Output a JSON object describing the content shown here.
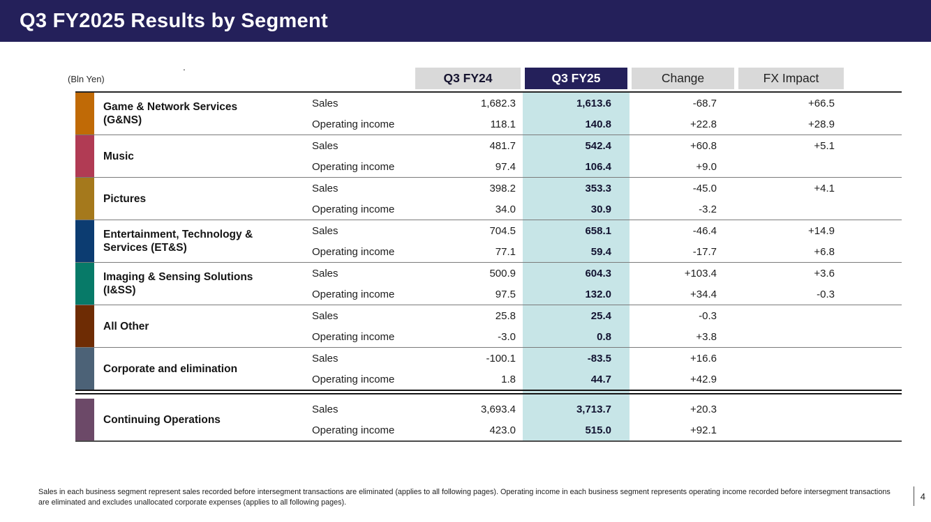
{
  "slide": {
    "title": "Q3 FY2025 Results by Segment",
    "unit_label": "(Bln Yen)",
    "stray_mark": ".",
    "page_number": "4",
    "footnote": "Sales in each business segment represent sales recorded before intersegment transactions are eliminated (applies to all following pages). Operating income in each business segment represents operating income recorded before intersegment transactions are eliminated and excludes unallocated corporate expenses (applies to all following pages)."
  },
  "colors": {
    "title_bar_bg": "#24205a",
    "header_highlight_bg": "#24205a",
    "header_gray_bg": "#d9d9d9",
    "column_highlight": "#c7e5e7"
  },
  "table": {
    "columns": [
      "Q3 FY24",
      "Q3 FY25",
      "Change",
      "FX Impact"
    ],
    "row_labels": {
      "sales": "Sales",
      "operating_income": "Operating income"
    },
    "segments": [
      {
        "name": "Game & Network Services (G&NS)",
        "color": "#c06a06",
        "sales": {
          "q3fy24": "1,682.3",
          "q3fy25": "1,613.6",
          "change": "-68.7",
          "fx_impact": "+66.5"
        },
        "operating_income": {
          "q3fy24": "118.1",
          "q3fy25": "140.8",
          "change": "+22.8",
          "fx_impact": "+28.9"
        }
      },
      {
        "name": "Music",
        "color": "#b13b54",
        "sales": {
          "q3fy24": "481.7",
          "q3fy25": "542.4",
          "change": "+60.8",
          "fx_impact": "+5.1"
        },
        "operating_income": {
          "q3fy24": "97.4",
          "q3fy25": "106.4",
          "change": "+9.0",
          "fx_impact": ""
        }
      },
      {
        "name": "Pictures",
        "color": "#a5791c",
        "sales": {
          "q3fy24": "398.2",
          "q3fy25": "353.3",
          "change": "-45.0",
          "fx_impact": "+4.1"
        },
        "operating_income": {
          "q3fy24": "34.0",
          "q3fy25": "30.9",
          "change": "-3.2",
          "fx_impact": ""
        }
      },
      {
        "name": "Entertainment, Technology & Services (ET&S)",
        "color": "#0c3c71",
        "sales": {
          "q3fy24": "704.5",
          "q3fy25": "658.1",
          "change": "-46.4",
          "fx_impact": "+14.9"
        },
        "operating_income": {
          "q3fy24": "77.1",
          "q3fy25": "59.4",
          "change": "-17.7",
          "fx_impact": "+6.8"
        }
      },
      {
        "name": "Imaging & Sensing Solutions (I&SS)",
        "color": "#077a68",
        "sales": {
          "q3fy24": "500.9",
          "q3fy25": "604.3",
          "change": "+103.4",
          "fx_impact": "+3.6"
        },
        "operating_income": {
          "q3fy24": "97.5",
          "q3fy25": "132.0",
          "change": "+34.4",
          "fx_impact": "-0.3"
        }
      },
      {
        "name": "All Other",
        "color": "#6e2c04",
        "sales": {
          "q3fy24": "25.8",
          "q3fy25": "25.4",
          "change": "-0.3",
          "fx_impact": ""
        },
        "operating_income": {
          "q3fy24": "-3.0",
          "q3fy25": "0.8",
          "change": "+3.8",
          "fx_impact": ""
        }
      },
      {
        "name": "Corporate and elimination",
        "color": "#4c6277",
        "sales": {
          "q3fy24": "-100.1",
          "q3fy25": "-83.5",
          "change": "+16.6",
          "fx_impact": ""
        },
        "operating_income": {
          "q3fy24": "1.8",
          "q3fy25": "44.7",
          "change": "+42.9",
          "fx_impact": ""
        }
      },
      {
        "name": "Continuing Operations",
        "color": "#6c4968",
        "sales": {
          "q3fy24": "3,693.4",
          "q3fy25": "3,713.7",
          "change": "+20.3",
          "fx_impact": ""
        },
        "operating_income": {
          "q3fy24": "423.0",
          "q3fy25": "515.0",
          "change": "+92.1",
          "fx_impact": ""
        }
      }
    ]
  }
}
